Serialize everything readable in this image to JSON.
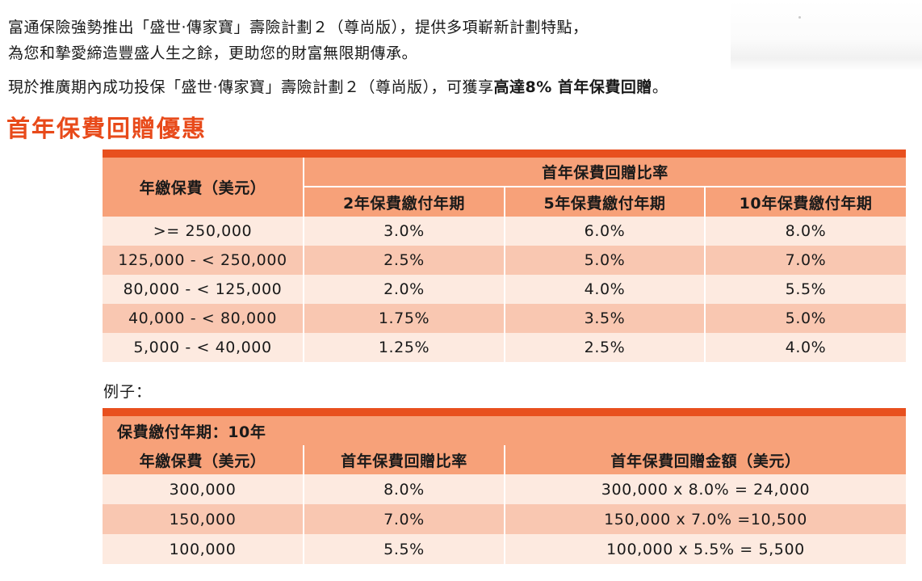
{
  "intro": {
    "line1": "富通保險強勢推出「盛世‧傳家寶」壽險計劃２（尊尚版），提供多項嶄新計劃特點，",
    "line2": "為您和摯愛締造豐盛人生之餘，更助您的財富無限期傳承。",
    "line3_prefix": "現於推廣期內成功投保「盛世‧傳家寶」壽險計劃２（尊尚版），可獲享",
    "line3_highlight": "高達8% 首年保費回贈",
    "line3_suffix": "。"
  },
  "heading": "首年保費回贈優惠",
  "rebate_table": {
    "col0_header": "年繳保費（美元）",
    "group_header": "首年保費回贈比率",
    "sub_headers": [
      "2年保費繳付年期",
      "5年保費繳付年期",
      "10年保費繳付年期"
    ],
    "rows": [
      {
        "premium": ">= 250,000",
        "y2": "3.0%",
        "y5": "6.0%",
        "y10": "8.0%"
      },
      {
        "premium": "125,000 - < 250,000",
        "y2": "2.5%",
        "y5": "5.0%",
        "y10": "7.0%"
      },
      {
        "premium": "80,000 - < 125,000",
        "y2": "2.0%",
        "y5": "4.0%",
        "y10": "5.5%"
      },
      {
        "premium": "40,000 - < 80,000",
        "y2": "1.75%",
        "y5": "3.5%",
        "y10": "5.0%"
      },
      {
        "premium": "5,000 - < 40,000",
        "y2": "1.25%",
        "y5": "2.5%",
        "y10": "4.0%"
      }
    ]
  },
  "example_label": "例子：",
  "example_table": {
    "period_label": "保費繳付年期：10年",
    "headers": [
      "年繳保費（美元）",
      "首年保費回贈比率",
      "首年保費回贈金額（美元）"
    ],
    "rows": [
      {
        "premium": "300,000",
        "rate": "8.0%",
        "amount": "300,000 x 8.0% = 24,000"
      },
      {
        "premium": "150,000",
        "rate": "7.0%",
        "amount": "150,000 x 7.0% =10,500"
      },
      {
        "premium": "100,000",
        "rate": "5.5%",
        "amount": "100,000 x 5.5% = 5,500"
      }
    ]
  },
  "colors": {
    "accent": "#e84a1a",
    "bar": "#e8501e",
    "header_bg": "#f7a179",
    "row_light": "#fdeae0",
    "row_dark": "#f9c7b1"
  }
}
